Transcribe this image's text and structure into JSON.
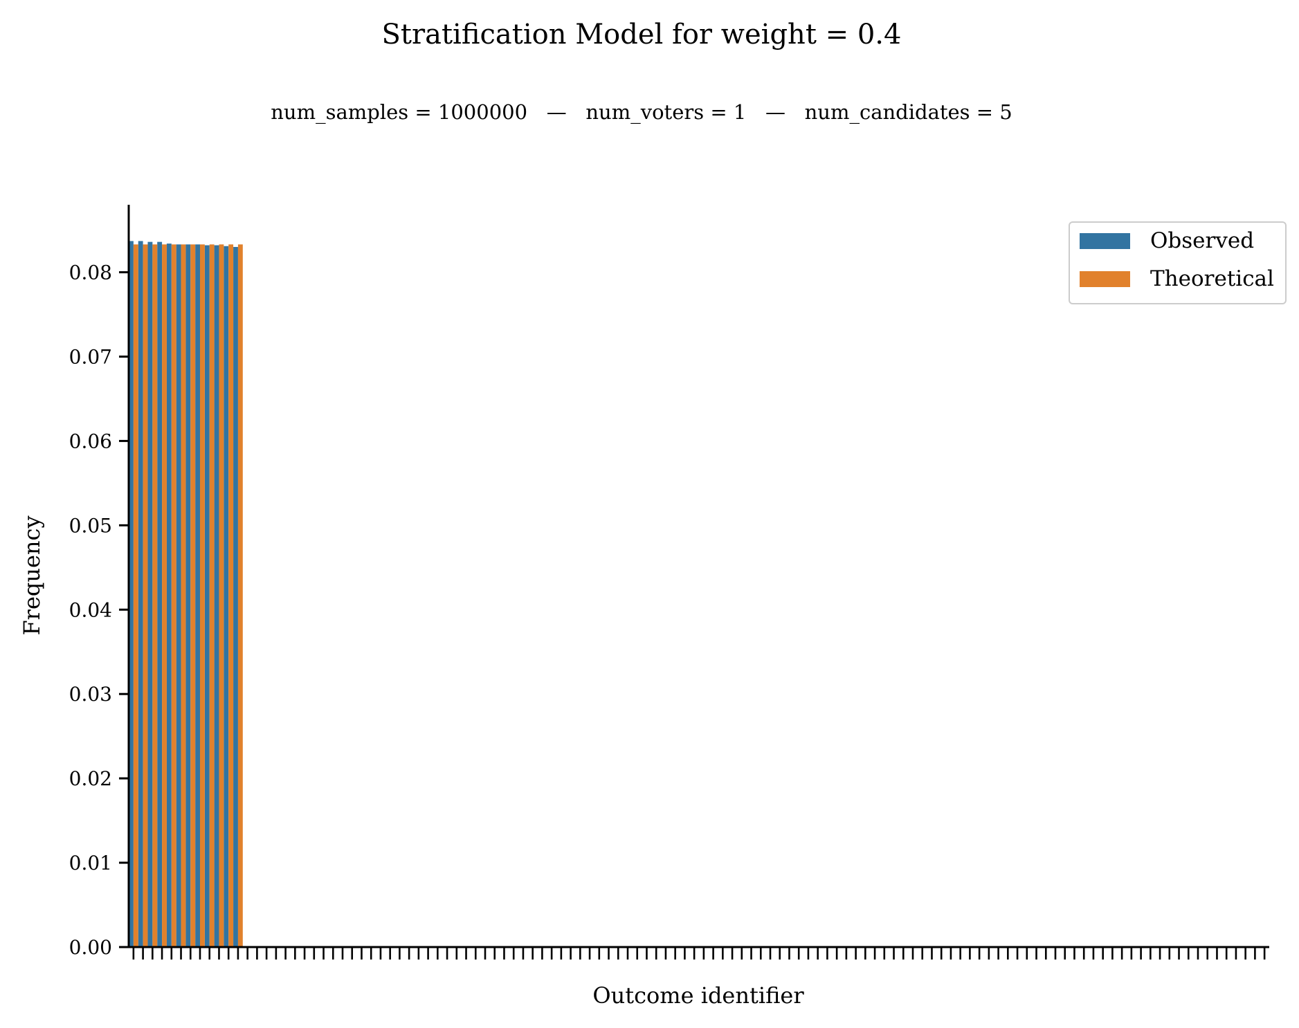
{
  "chart_data": {
    "type": "bar",
    "title": "Stratification Model for weight = 0.4",
    "subtitle": "num_samples = 1000000   —   num_voters = 1   —   num_candidates = 5",
    "xlabel": "Outcome identifier",
    "ylabel": "Frequency",
    "ylim": [
      0,
      0.088
    ],
    "yticks": [
      "0.00",
      "0.01",
      "0.02",
      "0.03",
      "0.04",
      "0.05",
      "0.06",
      "0.07",
      "0.08"
    ],
    "num_categories": 120,
    "legend_position": "top-right",
    "grid": false,
    "series": [
      {
        "name": "Observed",
        "color": "#3274a1",
        "values": [
          0.0837,
          0.0837,
          0.0836,
          0.0836,
          0.0834,
          0.0833,
          0.0833,
          0.0833,
          0.0832,
          0.0832,
          0.0831,
          0.083
        ]
      },
      {
        "name": "Theoretical",
        "color": "#e1812c",
        "values": [
          0.0833,
          0.0833,
          0.0833,
          0.0833,
          0.0833,
          0.0833,
          0.0833,
          0.0833,
          0.0833,
          0.0833,
          0.0833,
          0.0833
        ]
      }
    ]
  }
}
